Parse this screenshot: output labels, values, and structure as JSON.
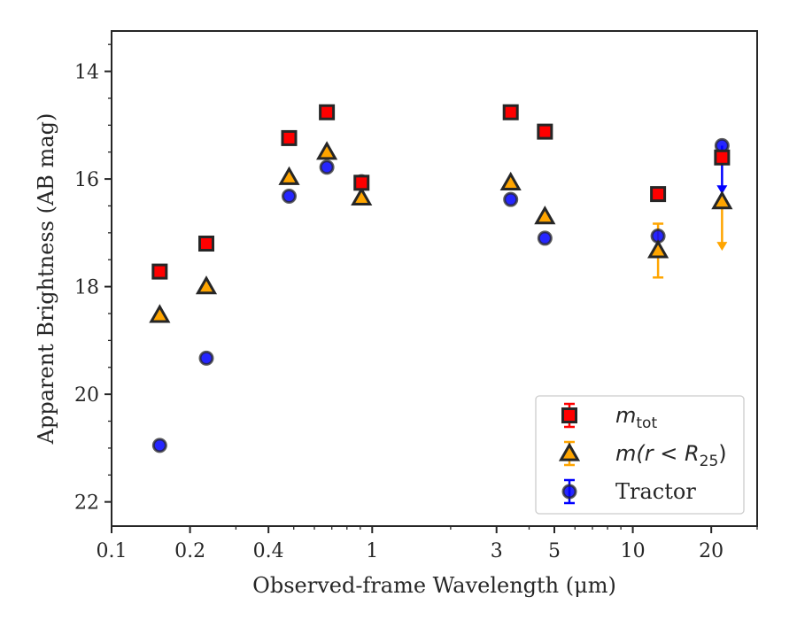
{
  "chart_data": {
    "type": "scatter",
    "xlabel": "Observed-frame Wavelength (μm)",
    "ylabel": "Apparent Brightness (AB mag)",
    "xscale": "log",
    "xlim": [
      0.1,
      30
    ],
    "ylim": [
      22.45,
      13.25
    ],
    "y_inverted": true,
    "xticks": [
      0.1,
      0.2,
      0.4,
      1,
      3,
      5,
      10,
      20
    ],
    "xtick_labels": [
      "0.1",
      "0.2",
      "0.4",
      "1",
      "3",
      "5",
      "10",
      "20"
    ],
    "yticks": [
      14,
      16,
      18,
      20,
      22
    ],
    "ytick_labels": [
      "14",
      "16",
      "18",
      "20",
      "22"
    ],
    "legend_position": "lower-right",
    "series": [
      {
        "key": "tot",
        "name": "m_tot",
        "marker": "square",
        "color": "#ff0000",
        "errcolor": "#ff0000",
        "points": [
          {
            "x": 0.153,
            "y": 17.72
          },
          {
            "x": 0.231,
            "y": 17.2
          },
          {
            "x": 0.48,
            "y": 15.24
          },
          {
            "x": 0.67,
            "y": 14.76
          },
          {
            "x": 0.91,
            "y": 16.07
          },
          {
            "x": 3.4,
            "y": 14.76
          },
          {
            "x": 4.6,
            "y": 15.12
          },
          {
            "x": 12.5,
            "y": 16.28
          },
          {
            "x": 22.0,
            "y": 15.6
          }
        ]
      },
      {
        "key": "r25",
        "name": "m(r < R_25)",
        "marker": "triangle",
        "color": "#ffa500",
        "errcolor": "#ffa500",
        "points": [
          {
            "x": 0.153,
            "y": 18.53
          },
          {
            "x": 0.231,
            "y": 18.0
          },
          {
            "x": 0.48,
            "y": 15.97
          },
          {
            "x": 0.67,
            "y": 15.5
          },
          {
            "x": 0.91,
            "y": 16.35
          },
          {
            "x": 3.4,
            "y": 16.07
          },
          {
            "x": 4.6,
            "y": 16.7
          },
          {
            "x": 12.5,
            "y": 17.33,
            "yerr": 0.5
          },
          {
            "x": 22.0,
            "y": 16.42,
            "upper_limit_to": 17.3
          }
        ]
      },
      {
        "key": "tractor",
        "name": "Tractor",
        "marker": "circle",
        "color": "#0000ff",
        "errcolor": "#0000ff",
        "points": [
          {
            "x": 0.153,
            "y": 20.95
          },
          {
            "x": 0.231,
            "y": 19.33
          },
          {
            "x": 0.48,
            "y": 16.32
          },
          {
            "x": 0.67,
            "y": 15.78
          },
          {
            "x": 0.91,
            "y": 16.05
          },
          {
            "x": 3.4,
            "y": 16.38
          },
          {
            "x": 4.6,
            "y": 17.1
          },
          {
            "x": 12.5,
            "y": 17.06
          },
          {
            "x": 22.0,
            "y": 15.38,
            "upper_limit_to": 16.25
          }
        ]
      }
    ]
  },
  "legend": [
    {
      "key": "tot",
      "base": "m",
      "sub": "tot",
      "suffix": ""
    },
    {
      "key": "r25",
      "base": "m(r < R",
      "sub": "25",
      "suffix": ")"
    },
    {
      "key": "tractor",
      "text": "Tractor"
    }
  ]
}
